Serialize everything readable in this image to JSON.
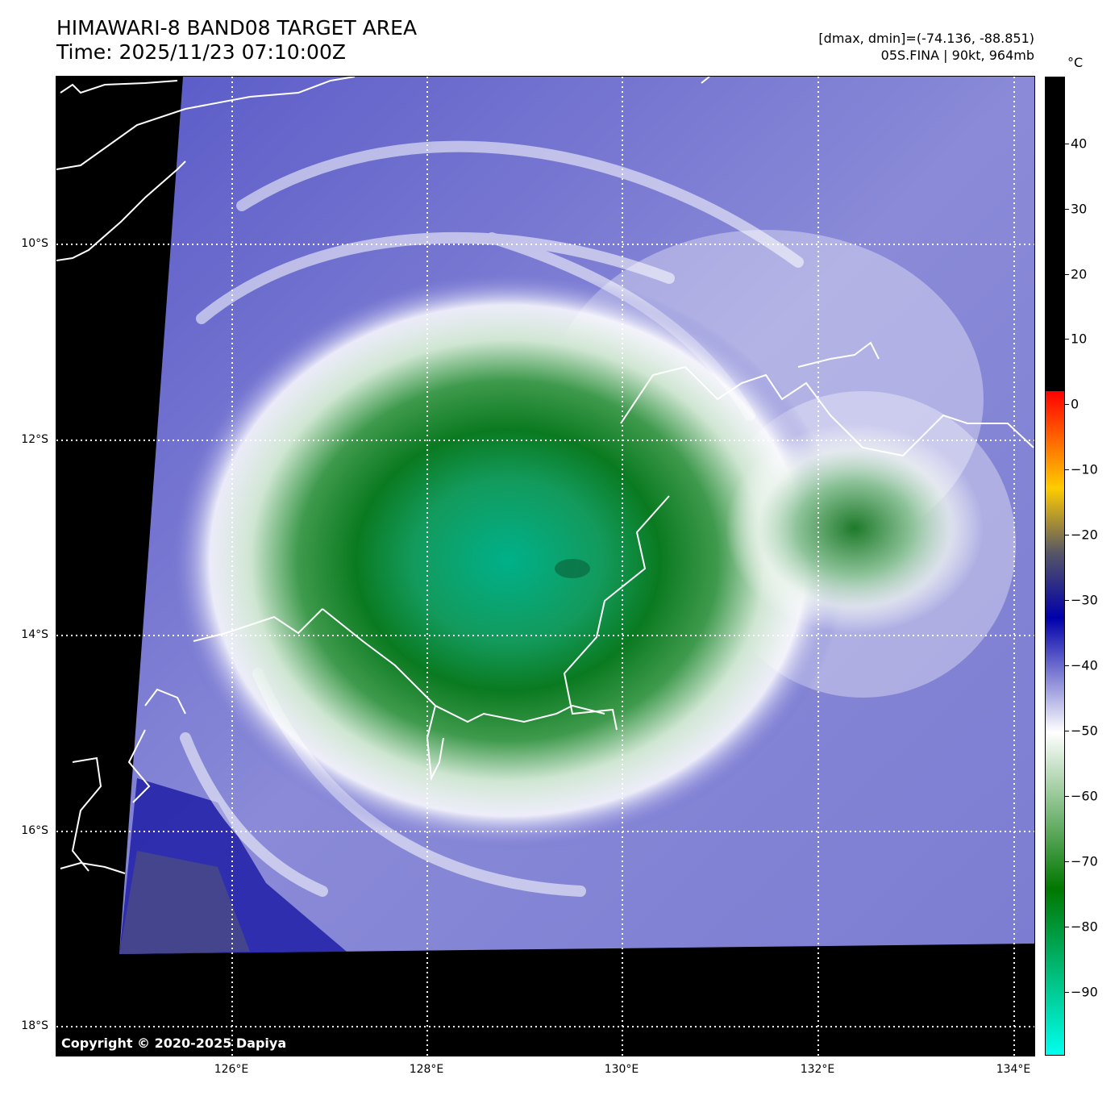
{
  "header": {
    "title": "HIMAWARI-8 BAND08 TARGET AREA",
    "time": "Time: 2025/11/23 07:10:00Z",
    "range": "[dmax, dmin]=(-74.136, -88.851)",
    "storm": "05S.FINA | 90kt, 964mb"
  },
  "map": {
    "copyright": "Copyright © 2020-2025 Dapiya",
    "lat_labels": [
      "10°S",
      "12°S",
      "14°S",
      "16°S",
      "18°S"
    ],
    "lon_labels": [
      "126°E",
      "128°E",
      "130°E",
      "132°E",
      "134°E"
    ],
    "grid_lines": "dotted-white",
    "coastline_color": "#ffffff",
    "no_data_color": "#000000"
  },
  "colorbar": {
    "unit": "°C",
    "tick_labels": [
      "40",
      "30",
      "20",
      "10",
      "0",
      "−10",
      "−20",
      "−30",
      "−40",
      "−50",
      "−60",
      "−70",
      "−80",
      "−90"
    ],
    "colors": {
      "above_zero": "#000000",
      "zero": "#ff0000",
      "minus10": "#ffcc00",
      "minus20": "#555566",
      "minus30": "#0000aa",
      "minus45": "#ffffff",
      "minus75": "#007700",
      "minus95": "#00ffee"
    }
  }
}
